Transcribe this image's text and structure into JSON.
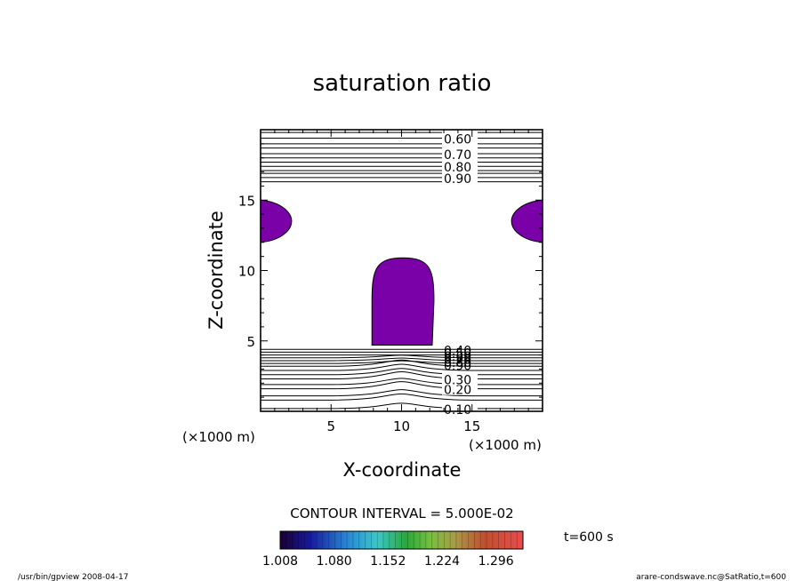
{
  "chart_data": {
    "type": "contour",
    "title": "saturation ratio",
    "xlabel": "X-coordinate",
    "ylabel": "Z-coordinate",
    "x_unit": "(×1000 m)",
    "y_unit": "(×1000 m)",
    "xlim": [
      0,
      20
    ],
    "ylim": [
      0,
      20
    ],
    "x_ticks": [
      5,
      10,
      15
    ],
    "y_ticks": [
      5,
      10,
      15
    ],
    "contour_interval_text": "CONTOUR INTERVAL = 5.000E-02",
    "upper_contour_levels": [
      {
        "label": "0.60",
        "z": 19.4
      },
      {
        "label": "0.70",
        "z": 18.3
      },
      {
        "label": "0.80",
        "z": 17.4
      },
      {
        "label": "0.90",
        "z": 16.6
      }
    ],
    "upper_contour_extra_z": [
      19.8,
      19.0,
      18.7,
      18.0,
      17.7,
      17.1,
      16.9,
      16.3
    ],
    "lower_contour_levels": [
      {
        "label": "0.10",
        "z": 0.2
      },
      {
        "label": "0.20",
        "z": 1.6
      },
      {
        "label": "0.30",
        "z": 2.3
      }
    ],
    "lower_contour_extra_z": [
      0.8,
      1.1,
      1.9,
      2.6,
      2.9,
      3.2,
      3.4,
      3.6,
      3.8,
      4.0,
      4.2,
      4.4
    ],
    "lower_stacked_labels": [
      "0.40",
      "0.50",
      "0.60",
      "0.70",
      "0.80",
      "0.90"
    ],
    "shaded_regions": [
      {
        "name": "central-plume",
        "x_range": [
          7.9,
          12.3
        ],
        "z_range": [
          4.7,
          10.9
        ]
      },
      {
        "name": "left-edge-lobe",
        "x_range": [
          0,
          2.2
        ],
        "z_range": [
          12.0,
          15.0
        ]
      },
      {
        "name": "right-edge-lobe",
        "x_range": [
          17.8,
          20
        ],
        "z_range": [
          12.0,
          15.0
        ]
      }
    ],
    "shade_color": "#7a00a8",
    "colorbar": {
      "min": 1.008,
      "max": 1.332,
      "tick_labels": [
        "1.008",
        "1.080",
        "1.152",
        "1.224",
        "1.296"
      ]
    },
    "time_label": "t=600 s"
  },
  "footer": {
    "left": "/usr/bin/gpview   2008-04-17",
    "right": "arare-condswave.nc@SatRatio,t=600"
  }
}
